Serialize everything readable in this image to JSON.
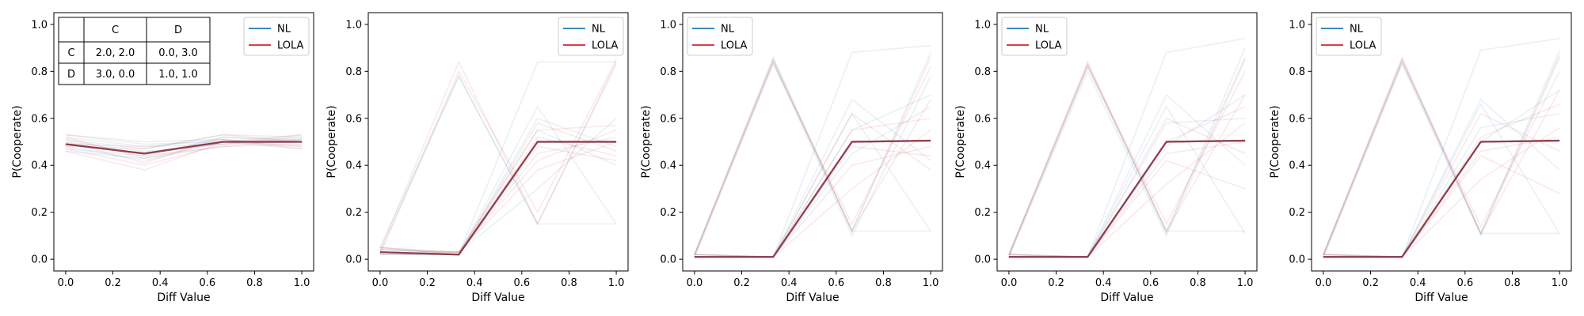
{
  "chart_data": [
    {
      "type": "line",
      "xlabel": "Diff Value",
      "ylabel": "P(Cooperate)",
      "xlim": [
        -0.05,
        1.05
      ],
      "ylim": [
        -0.05,
        1.05
      ],
      "x": [
        0.0,
        0.3333,
        0.6667,
        1.0
      ],
      "xticks": [
        "0.0",
        "0.2",
        "0.4",
        "0.6",
        "0.8",
        "1.0"
      ],
      "yticks": [
        "0.0",
        "0.2",
        "0.4",
        "0.6",
        "0.8",
        "1.0"
      ],
      "grid": false,
      "legend_position": "top-right",
      "series": [
        {
          "name": "NL",
          "color": "#1f77b4",
          "values": [
            0.49,
            0.45,
            0.5,
            0.5
          ]
        },
        {
          "name": "LOLA",
          "color": "#d62728",
          "values": [
            0.49,
            0.45,
            0.5,
            0.5
          ]
        }
      ],
      "mean_line_color": "#8b3a4a",
      "faint_runs": {
        "NL": [
          [
            0.52,
            0.48,
            0.51,
            0.49
          ],
          [
            0.47,
            0.44,
            0.52,
            0.51
          ],
          [
            0.5,
            0.46,
            0.49,
            0.52
          ],
          [
            0.48,
            0.42,
            0.5,
            0.48
          ],
          [
            0.51,
            0.47,
            0.53,
            0.5
          ],
          [
            0.46,
            0.43,
            0.48,
            0.51
          ],
          [
            0.53,
            0.49,
            0.5,
            0.53
          ],
          [
            0.49,
            0.45,
            0.51,
            0.47
          ]
        ],
        "LOLA": [
          [
            0.5,
            0.41,
            0.52,
            0.5
          ],
          [
            0.47,
            0.4,
            0.49,
            0.53
          ],
          [
            0.53,
            0.5,
            0.51,
            0.48
          ],
          [
            0.46,
            0.38,
            0.5,
            0.51
          ],
          [
            0.51,
            0.44,
            0.48,
            0.49
          ],
          [
            0.48,
            0.47,
            0.53,
            0.52
          ],
          [
            0.52,
            0.43,
            0.5,
            0.47
          ],
          [
            0.49,
            0.48,
            0.49,
            0.5
          ]
        ]
      },
      "payoff_table": {
        "headers": [
          "",
          "C",
          "D"
        ],
        "rows": [
          [
            "C",
            "2.0, 2.0",
            "0.0, 3.0"
          ],
          [
            "D",
            "3.0, 0.0",
            "1.0, 1.0"
          ]
        ]
      }
    },
    {
      "type": "line",
      "xlabel": "Diff Value",
      "ylabel": "P(Cooperate)",
      "xlim": [
        -0.05,
        1.05
      ],
      "ylim": [
        -0.05,
        1.05
      ],
      "x": [
        0.0,
        0.3333,
        0.6667,
        1.0
      ],
      "xticks": [
        "0.0",
        "0.2",
        "0.4",
        "0.6",
        "0.8",
        "1.0"
      ],
      "yticks": [
        "0.0",
        "0.2",
        "0.4",
        "0.6",
        "0.8",
        "1.0"
      ],
      "grid": false,
      "legend_position": "top-right",
      "series": [
        {
          "name": "NL",
          "color": "#1f77b4",
          "values": [
            0.03,
            0.02,
            0.5,
            0.5
          ]
        },
        {
          "name": "LOLA",
          "color": "#d62728",
          "values": [
            0.03,
            0.02,
            0.5,
            0.5
          ]
        }
      ],
      "mean_line_color": "#8b3a4a",
      "faint_runs": {
        "NL": [
          [
            0.05,
            0.78,
            0.15,
            0.83
          ],
          [
            0.03,
            0.02,
            0.65,
            0.15
          ],
          [
            0.04,
            0.03,
            0.45,
            0.52
          ],
          [
            0.02,
            0.02,
            0.84,
            0.84
          ],
          [
            0.05,
            0.02,
            0.55,
            0.4
          ],
          [
            0.03,
            0.78,
            0.15,
            0.15
          ],
          [
            0.04,
            0.03,
            0.3,
            0.6
          ],
          [
            0.02,
            0.02,
            0.6,
            0.48
          ]
        ],
        "LOLA": [
          [
            0.04,
            0.84,
            0.15,
            0.84
          ],
          [
            0.03,
            0.03,
            0.55,
            0.57
          ],
          [
            0.05,
            0.02,
            0.48,
            0.42
          ],
          [
            0.02,
            0.8,
            0.2,
            0.85
          ],
          [
            0.04,
            0.03,
            0.42,
            0.55
          ],
          [
            0.03,
            0.02,
            0.58,
            0.46
          ],
          [
            0.05,
            0.03,
            0.38,
            0.5
          ],
          [
            0.02,
            0.02,
            0.52,
            0.44
          ]
        ]
      }
    },
    {
      "type": "line",
      "xlabel": "Diff Value",
      "ylabel": "P(Cooperate)",
      "xlim": [
        -0.05,
        1.05
      ],
      "ylim": [
        -0.05,
        1.05
      ],
      "x": [
        0.0,
        0.3333,
        0.6667,
        1.0
      ],
      "xticks": [
        "0.0",
        "0.2",
        "0.4",
        "0.6",
        "0.8",
        "1.0"
      ],
      "yticks": [
        "0.0",
        "0.2",
        "0.4",
        "0.6",
        "0.8",
        "1.0"
      ],
      "grid": false,
      "legend_position": "top-left",
      "series": [
        {
          "name": "NL",
          "color": "#1f77b4",
          "values": [
            0.01,
            0.01,
            0.5,
            0.505
          ]
        },
        {
          "name": "LOLA",
          "color": "#d62728",
          "values": [
            0.01,
            0.01,
            0.5,
            0.505
          ]
        }
      ],
      "mean_line_color": "#8b3a4a",
      "faint_runs": {
        "NL": [
          [
            0.02,
            0.86,
            0.12,
            0.88
          ],
          [
            0.01,
            0.01,
            0.88,
            0.91
          ],
          [
            0.02,
            0.01,
            0.62,
            0.12
          ],
          [
            0.01,
            0.84,
            0.1,
            0.78
          ],
          [
            0.02,
            0.01,
            0.45,
            0.65
          ],
          [
            0.01,
            0.01,
            0.68,
            0.42
          ],
          [
            0.02,
            0.85,
            0.12,
            0.12
          ],
          [
            0.01,
            0.01,
            0.55,
            0.7
          ]
        ],
        "LOLA": [
          [
            0.02,
            0.85,
            0.12,
            0.86
          ],
          [
            0.01,
            0.01,
            0.55,
            0.6
          ],
          [
            0.02,
            0.01,
            0.4,
            0.48
          ],
          [
            0.01,
            0.83,
            0.15,
            0.82
          ],
          [
            0.02,
            0.01,
            0.62,
            0.38
          ],
          [
            0.01,
            0.01,
            0.3,
            0.55
          ],
          [
            0.02,
            0.84,
            0.12,
            0.68
          ],
          [
            0.01,
            0.01,
            0.48,
            0.44
          ]
        ]
      }
    },
    {
      "type": "line",
      "xlabel": "Diff Value",
      "ylabel": "P(Cooperate)",
      "xlim": [
        -0.05,
        1.05
      ],
      "ylim": [
        -0.05,
        1.05
      ],
      "x": [
        0.0,
        0.3333,
        0.6667,
        1.0
      ],
      "xticks": [
        "0.0",
        "0.2",
        "0.4",
        "0.6",
        "0.8",
        "1.0"
      ],
      "yticks": [
        "0.0",
        "0.2",
        "0.4",
        "0.6",
        "0.8",
        "1.0"
      ],
      "grid": false,
      "legend_position": "top-left",
      "series": [
        {
          "name": "NL",
          "color": "#1f77b4",
          "values": [
            0.01,
            0.01,
            0.5,
            0.505
          ]
        },
        {
          "name": "LOLA",
          "color": "#d62728",
          "values": [
            0.01,
            0.01,
            0.5,
            0.505
          ]
        }
      ],
      "mean_line_color": "#8b3a4a",
      "faint_runs": {
        "NL": [
          [
            0.02,
            0.83,
            0.11,
            0.9
          ],
          [
            0.01,
            0.01,
            0.88,
            0.94
          ],
          [
            0.02,
            0.01,
            0.65,
            0.11
          ],
          [
            0.01,
            0.8,
            0.1,
            0.85
          ],
          [
            0.02,
            0.01,
            0.48,
            0.7
          ],
          [
            0.01,
            0.01,
            0.7,
            0.4
          ],
          [
            0.02,
            0.82,
            0.12,
            0.12
          ],
          [
            0.01,
            0.01,
            0.58,
            0.6
          ]
        ],
        "LOLA": [
          [
            0.02,
            0.84,
            0.12,
            0.86
          ],
          [
            0.01,
            0.01,
            0.5,
            0.65
          ],
          [
            0.02,
            0.01,
            0.42,
            0.3
          ],
          [
            0.01,
            0.82,
            0.15,
            0.8
          ],
          [
            0.02,
            0.01,
            0.6,
            0.45
          ],
          [
            0.01,
            0.01,
            0.32,
            0.58
          ],
          [
            0.02,
            0.83,
            0.12,
            0.7
          ],
          [
            0.01,
            0.01,
            0.45,
            0.5
          ]
        ]
      }
    },
    {
      "type": "line",
      "xlabel": "Diff Value",
      "ylabel": "P(Cooperate)",
      "xlim": [
        -0.05,
        1.05
      ],
      "ylim": [
        -0.05,
        1.05
      ],
      "x": [
        0.0,
        0.3333,
        0.6667,
        1.0
      ],
      "xticks": [
        "0.0",
        "0.2",
        "0.4",
        "0.6",
        "0.8",
        "1.0"
      ],
      "yticks": [
        "0.0",
        "0.2",
        "0.4",
        "0.6",
        "0.8",
        "1.0"
      ],
      "grid": false,
      "legend_position": "top-left",
      "series": [
        {
          "name": "NL",
          "color": "#1f77b4",
          "values": [
            0.01,
            0.01,
            0.5,
            0.505
          ]
        },
        {
          "name": "LOLA",
          "color": "#d62728",
          "values": [
            0.01,
            0.01,
            0.5,
            0.505
          ]
        }
      ],
      "mean_line_color": "#8b3a4a",
      "faint_runs": {
        "NL": [
          [
            0.02,
            0.85,
            0.11,
            0.89
          ],
          [
            0.01,
            0.01,
            0.89,
            0.94
          ],
          [
            0.02,
            0.01,
            0.66,
            0.11
          ],
          [
            0.01,
            0.83,
            0.1,
            0.86
          ],
          [
            0.02,
            0.01,
            0.5,
            0.72
          ],
          [
            0.01,
            0.01,
            0.68,
            0.38
          ],
          [
            0.02,
            0.84,
            0.11,
            0.11
          ],
          [
            0.01,
            0.01,
            0.56,
            0.62
          ]
        ],
        "LOLA": [
          [
            0.02,
            0.86,
            0.11,
            0.87
          ],
          [
            0.01,
            0.01,
            0.52,
            0.66
          ],
          [
            0.02,
            0.01,
            0.44,
            0.28
          ],
          [
            0.01,
            0.84,
            0.14,
            0.8
          ],
          [
            0.02,
            0.01,
            0.62,
            0.46
          ],
          [
            0.01,
            0.01,
            0.34,
            0.56
          ],
          [
            0.02,
            0.85,
            0.11,
            0.72
          ],
          [
            0.01,
            0.01,
            0.46,
            0.52
          ]
        ]
      }
    }
  ]
}
